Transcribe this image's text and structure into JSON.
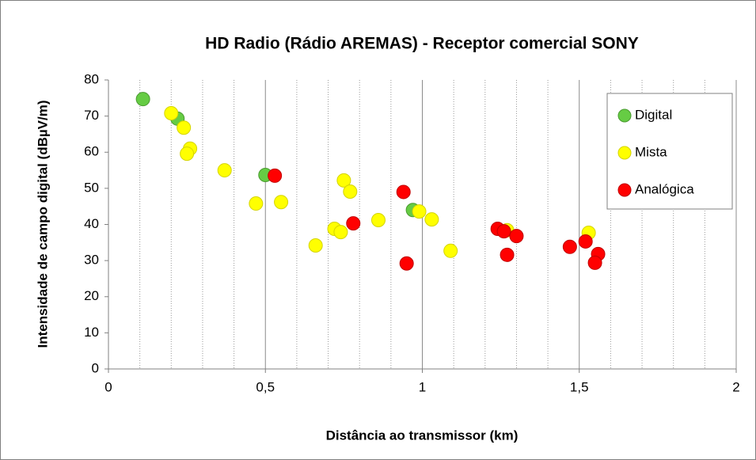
{
  "chart_data": {
    "type": "scatter",
    "title": "HD Radio (Rádio AREMAS) - Receptor comercial  SONY",
    "x_label": "Distância ao transmissor (km)",
    "y_label": "Intensidade de campo digital (dBµV/m)",
    "xlim": [
      0,
      2
    ],
    "ylim": [
      0,
      80
    ],
    "xticks": [
      0,
      {
        "value": 0.5,
        "label": "0,5"
      },
      1,
      {
        "value": 1.5,
        "label": "1,5"
      },
      2
    ],
    "yticks": [
      0,
      10,
      20,
      30,
      40,
      50,
      60,
      70,
      80
    ],
    "grid": true,
    "legend": "upper right",
    "series": [
      {
        "name": "Digital",
        "color": "#66cc44",
        "x": [
          0.11,
          0.22,
          0.5,
          0.97
        ],
        "values": [
          74.7,
          69.3,
          53.7,
          44.0
        ]
      },
      {
        "name": "Mista",
        "color": "#ffff00",
        "x": [
          0.2,
          0.24,
          0.26,
          0.25,
          0.37,
          0.47,
          0.55,
          0.75,
          0.77,
          0.66,
          0.72,
          0.74,
          0.86,
          0.99,
          1.03,
          1.09,
          1.27,
          1.53
        ],
        "values": [
          70.8,
          66.8,
          61.0,
          59.6,
          55.0,
          45.8,
          46.2,
          52.2,
          49.1,
          34.2,
          38.8,
          37.9,
          41.2,
          43.6,
          41.4,
          32.7,
          38.4,
          37.7
        ]
      },
      {
        "name": "Analógica",
        "color": "#ff0000",
        "x": [
          0.53,
          0.78,
          0.94,
          0.95,
          1.24,
          1.26,
          1.3,
          1.27,
          1.47,
          1.52,
          1.56,
          1.55
        ],
        "values": [
          53.5,
          40.3,
          49.0,
          29.2,
          38.8,
          38.1,
          36.8,
          31.6,
          33.8,
          35.3,
          31.8,
          29.4
        ]
      }
    ]
  }
}
